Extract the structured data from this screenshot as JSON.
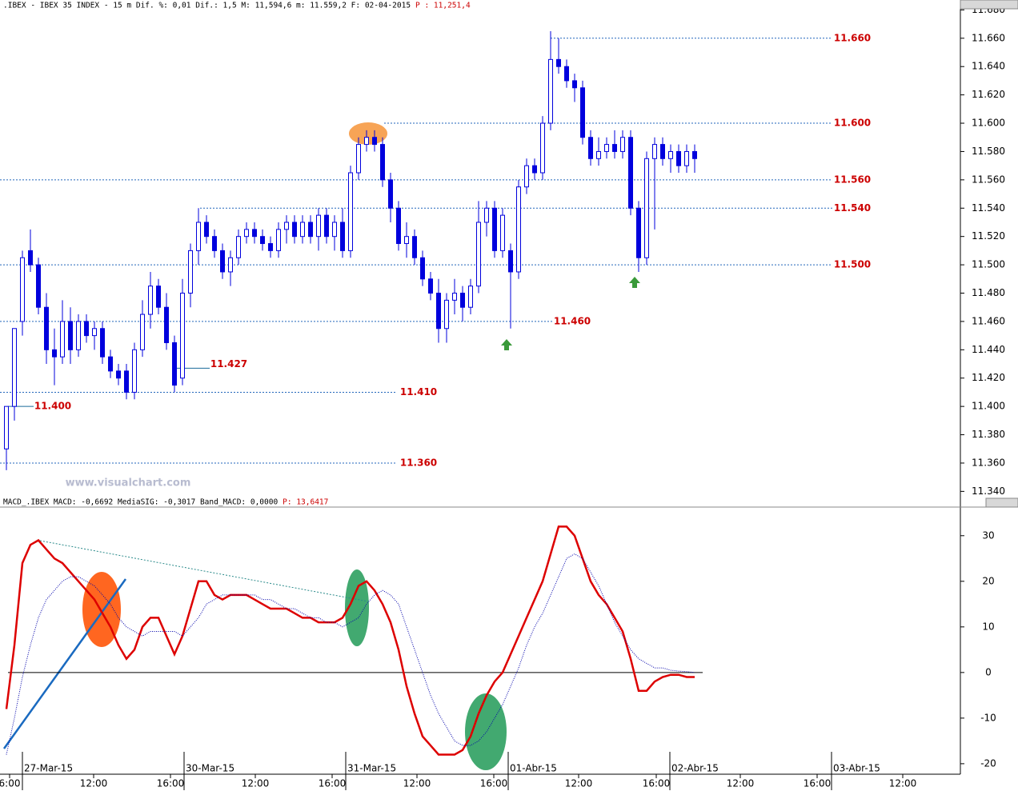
{
  "chart_data": [
    {
      "type": "candlestick",
      "title": ".IBEX - IBEX 35 INDEX - 15 m Dif. %: 0,01 Dif.: 1,5 M: 11,594,6 m: 11.559,2 F: 02-04-2015",
      "title_value": "P : 11,251,4",
      "watermark": "www.visualchart.com",
      "color": "#0000dd",
      "xlim": [
        -0.8,
        119.2
      ],
      "ylim": [
        11.334,
        11.687
      ],
      "yticks": [
        {
          "value": 11.34,
          "label": "11.340"
        },
        {
          "value": 11.36,
          "label": "11.360"
        },
        {
          "value": 11.38,
          "label": "11.380"
        },
        {
          "value": 11.4,
          "label": "11.400"
        },
        {
          "value": 11.42,
          "label": "11.420"
        },
        {
          "value": 11.44,
          "label": "11.440"
        },
        {
          "value": 11.46,
          "label": "11.460"
        },
        {
          "value": 11.48,
          "label": "11.480"
        },
        {
          "value": 11.5,
          "label": "11.500"
        },
        {
          "value": 11.52,
          "label": "11.520"
        },
        {
          "value": 11.54,
          "label": "11.540"
        },
        {
          "value": 11.56,
          "label": "11.560"
        },
        {
          "value": 11.58,
          "label": "11.580"
        },
        {
          "value": 11.6,
          "label": "11.600"
        },
        {
          "value": 11.62,
          "label": "11.620"
        },
        {
          "value": 11.64,
          "label": "11.640"
        },
        {
          "value": 11.66,
          "label": "11.660"
        },
        {
          "value": 11.68,
          "label": "11.680"
        }
      ],
      "levels": [
        {
          "value": 11.66,
          "label": "11.660"
        },
        {
          "value": 11.6,
          "label": "11.600"
        },
        {
          "value": 11.56,
          "label": "11.560"
        },
        {
          "value": 11.54,
          "label": "11.540"
        },
        {
          "value": 11.5,
          "label": "11.500"
        },
        {
          "value": 11.46,
          "label": "11.460"
        },
        {
          "value": 11.41,
          "label": "11.410"
        },
        {
          "value": 11.36,
          "label": "11.360"
        },
        {
          "value": 11.427,
          "label": "11.427"
        },
        {
          "value": 11.4,
          "label": "11.400"
        }
      ],
      "open": [
        11.37,
        11.4,
        11.46,
        11.51,
        11.5,
        11.47,
        11.44,
        11.435,
        11.46,
        11.44,
        11.46,
        11.45,
        11.455,
        11.435,
        11.425,
        11.425,
        11.41,
        11.44,
        11.465,
        11.485,
        11.47,
        11.445,
        11.42,
        11.48,
        11.51,
        11.53,
        11.52,
        11.51,
        11.495,
        11.505,
        11.52,
        11.525,
        11.52,
        11.515,
        11.51,
        11.525,
        11.53,
        11.52,
        11.53,
        11.52,
        11.535,
        11.52,
        11.53,
        11.51,
        11.565,
        11.585,
        11.59,
        11.585,
        11.56,
        11.54,
        11.515,
        11.52,
        11.505,
        11.49,
        11.48,
        11.455,
        11.475,
        11.48,
        11.47,
        11.485,
        11.53,
        11.54,
        11.51,
        11.51,
        11.495,
        11.555,
        11.57,
        11.565,
        11.6,
        11.645,
        11.64,
        11.63,
        11.625,
        11.59,
        11.575,
        11.58,
        11.585,
        11.58,
        11.59,
        11.54,
        11.505,
        11.575,
        11.585,
        11.575,
        11.58,
        11.57,
        11.58
      ],
      "high": [
        11.4,
        11.455,
        11.51,
        11.525,
        11.505,
        11.48,
        11.455,
        11.475,
        11.47,
        11.465,
        11.465,
        11.46,
        11.46,
        11.44,
        11.43,
        11.43,
        11.445,
        11.475,
        11.495,
        11.49,
        11.48,
        11.45,
        11.49,
        11.515,
        11.54,
        11.535,
        11.525,
        11.515,
        11.51,
        11.525,
        11.53,
        11.53,
        11.525,
        11.52,
        11.53,
        11.535,
        11.535,
        11.535,
        11.535,
        11.54,
        11.54,
        11.535,
        11.54,
        11.57,
        11.59,
        11.595,
        11.595,
        11.59,
        11.565,
        11.545,
        11.53,
        11.525,
        11.51,
        11.495,
        11.49,
        11.48,
        11.49,
        11.485,
        11.49,
        11.545,
        11.545,
        11.545,
        11.54,
        11.515,
        11.56,
        11.575,
        11.575,
        11.605,
        11.665,
        11.66,
        11.645,
        11.635,
        11.63,
        11.595,
        11.59,
        11.59,
        11.595,
        11.595,
        11.595,
        11.545,
        11.58,
        11.59,
        11.59,
        11.585,
        11.585,
        11.585,
        11.585
      ],
      "low": [
        11.355,
        11.39,
        11.45,
        11.495,
        11.465,
        11.43,
        11.415,
        11.43,
        11.43,
        11.435,
        11.445,
        11.44,
        11.43,
        11.42,
        11.415,
        11.405,
        11.405,
        11.435,
        11.455,
        11.465,
        11.44,
        11.41,
        11.415,
        11.47,
        11.5,
        11.515,
        11.505,
        11.49,
        11.485,
        11.5,
        11.515,
        11.515,
        11.51,
        11.505,
        11.505,
        11.515,
        11.515,
        11.515,
        11.515,
        11.51,
        11.515,
        11.51,
        11.505,
        11.505,
        11.56,
        11.58,
        11.58,
        11.555,
        11.53,
        11.51,
        11.505,
        11.5,
        11.485,
        11.475,
        11.445,
        11.445,
        11.465,
        11.46,
        11.465,
        11.48,
        11.52,
        11.505,
        11.505,
        11.455,
        11.49,
        11.55,
        11.56,
        11.56,
        11.595,
        11.635,
        11.625,
        11.615,
        11.585,
        11.57,
        11.57,
        11.575,
        11.575,
        11.575,
        11.535,
        11.495,
        11.5,
        11.525,
        11.57,
        11.565,
        11.565,
        11.565,
        11.565
      ],
      "close": [
        11.4,
        11.455,
        11.505,
        11.5,
        11.47,
        11.44,
        11.435,
        11.46,
        11.44,
        11.46,
        11.45,
        11.455,
        11.435,
        11.425,
        11.42,
        11.41,
        11.44,
        11.465,
        11.485,
        11.47,
        11.445,
        11.415,
        11.48,
        11.51,
        11.53,
        11.52,
        11.51,
        11.495,
        11.505,
        11.52,
        11.525,
        11.52,
        11.515,
        11.51,
        11.525,
        11.53,
        11.52,
        11.53,
        11.52,
        11.535,
        11.52,
        11.53,
        11.51,
        11.565,
        11.585,
        11.59,
        11.585,
        11.56,
        11.54,
        11.515,
        11.52,
        11.505,
        11.49,
        11.48,
        11.455,
        11.475,
        11.48,
        11.47,
        11.485,
        11.53,
        11.54,
        11.51,
        11.535,
        11.495,
        11.555,
        11.57,
        11.565,
        11.6,
        11.645,
        11.64,
        11.63,
        11.625,
        11.59,
        11.575,
        11.58,
        11.585,
        11.58,
        11.59,
        11.54,
        11.505,
        11.575,
        11.585,
        11.575,
        11.58,
        11.57,
        11.58,
        11.575
      ]
    },
    {
      "type": "line",
      "title": "MACD_.IBEX MACD: -0,6692 MediaSIG: -0,3017 Band_MACD: 0,0000",
      "title_value": "P: 13,6417",
      "xlim": [
        -0.8,
        119.2
      ],
      "ylim": [
        -22.3,
        36.1
      ],
      "yticks": [
        -20,
        -10,
        0,
        10,
        20,
        30
      ],
      "xticks": [
        {
          "value": 0.4,
          "label": "6:00"
        },
        {
          "value": 10.9,
          "label": "12:00"
        },
        {
          "value": 20.5,
          "label": "16:00"
        },
        {
          "value": 31.1,
          "label": "12:00"
        },
        {
          "value": 40.7,
          "label": "16:00"
        },
        {
          "value": 51.3,
          "label": "12:00"
        },
        {
          "value": 60.9,
          "label": "16:00"
        },
        {
          "value": 71.5,
          "label": "12:00"
        },
        {
          "value": 81.2,
          "label": "16:00"
        },
        {
          "value": 91.7,
          "label": "12:00"
        },
        {
          "value": 101.3,
          "label": "16:00"
        },
        {
          "value": 112.0,
          "label": "12:00"
        }
      ],
      "xticks_dates": [
        {
          "value": 2.0,
          "label": "27-Mar-15"
        },
        {
          "value": 22.2,
          "label": "30-Mar-15"
        },
        {
          "value": 42.4,
          "label": "31-Mar-15"
        },
        {
          "value": 62.7,
          "label": "01-Abr-15"
        },
        {
          "value": 82.9,
          "label": "02-Abr-15"
        },
        {
          "value": 103.1,
          "label": "03-Abr-15"
        }
      ],
      "series": [
        {
          "name": "MACD",
          "color": "#dd0000",
          "values": [
            -8,
            6,
            24,
            28,
            29,
            27,
            25,
            24,
            22,
            20,
            18,
            16,
            13,
            10,
            6,
            3,
            5,
            10,
            12,
            12,
            8,
            4,
            8,
            14,
            20,
            20,
            17,
            16,
            17,
            17,
            17,
            16,
            15,
            14,
            14,
            14,
            13,
            12,
            12,
            11,
            11,
            11,
            12,
            15,
            19,
            20,
            18,
            15,
            11,
            5,
            -3,
            -9,
            -14,
            -16,
            -18,
            -18,
            -18,
            -17,
            -14,
            -9,
            -5,
            -2,
            0,
            4,
            8,
            12,
            16,
            20,
            26,
            32,
            32,
            30,
            25,
            20,
            17,
            15,
            12,
            9,
            3,
            -4,
            -4,
            -2,
            -1,
            -0.5,
            -0.5,
            -1,
            -1
          ]
        },
        {
          "name": "MediaSIG",
          "color": "#0000aa",
          "values": [
            -18,
            -10,
            -1,
            6,
            12,
            16,
            18,
            20,
            21,
            21,
            20,
            19,
            17,
            15,
            12,
            10,
            9,
            8,
            9,
            9,
            9,
            9,
            8,
            10,
            12,
            15,
            16,
            17,
            17,
            17,
            17,
            17,
            16,
            16,
            15,
            14,
            14,
            13,
            12,
            12,
            11,
            11,
            10,
            11,
            12,
            15,
            17,
            18,
            17,
            15,
            10,
            5,
            0,
            -5,
            -9,
            -12,
            -15,
            -16,
            -16,
            -15,
            -13,
            -10,
            -7,
            -3,
            1,
            6,
            10,
            13,
            17,
            21,
            25,
            26,
            25,
            22,
            19,
            15,
            11,
            8,
            5,
            3,
            2,
            1,
            1,
            0.5,
            0.3,
            0.2,
            0
          ]
        }
      ]
    }
  ]
}
